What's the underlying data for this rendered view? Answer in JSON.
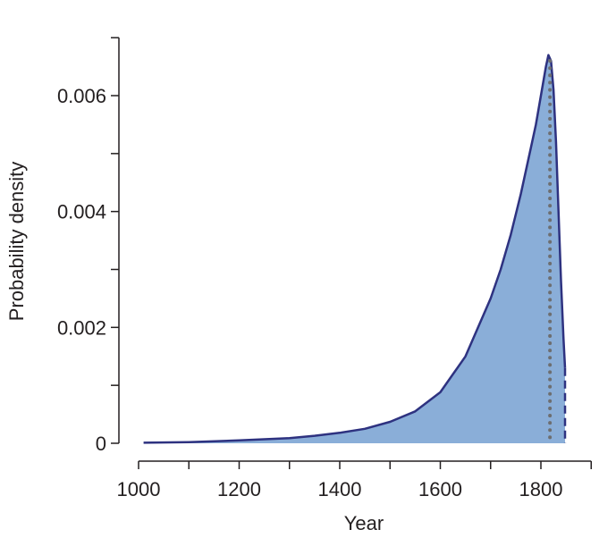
{
  "chart_data": {
    "type": "area",
    "xlabel": "Year",
    "ylabel": "Probability density",
    "xlim": [
      1000,
      1900
    ],
    "ylim": [
      0,
      0.007
    ],
    "x_ticks": [
      1000,
      1200,
      1400,
      1600,
      1800
    ],
    "y_ticks": [
      0,
      0.002,
      0.004,
      0.006
    ],
    "x_tick_labels": [
      "1000",
      "1200",
      "1400",
      "1600",
      "1800"
    ],
    "y_tick_labels": [
      "0",
      "0.002",
      "0.004",
      "0.006"
    ],
    "grid": false,
    "series": [
      {
        "x": [
          1010,
          1100,
          1200,
          1300,
          1350,
          1400,
          1450,
          1500,
          1550,
          1600,
          1650,
          1700,
          1720,
          1740,
          1760,
          1780,
          1790,
          1800,
          1810,
          1815,
          1820,
          1825,
          1830,
          1835,
          1840,
          1845,
          1848
        ],
        "y": [
          1e-05,
          2e-05,
          5e-05,
          9e-05,
          0.00013,
          0.00018,
          0.00025,
          0.00037,
          0.00055,
          0.00088,
          0.0015,
          0.0025,
          0.003,
          0.0036,
          0.0043,
          0.0051,
          0.0055,
          0.006,
          0.0065,
          0.0067,
          0.0066,
          0.0061,
          0.0052,
          0.004,
          0.0028,
          0.0018,
          0.0013
        ],
        "line_color": "#2e3280",
        "fill_color": "#8aaed8"
      }
    ],
    "annotations": [
      {
        "type": "vline",
        "x": 1818,
        "style": "dotted",
        "color": "#6d6e70"
      },
      {
        "type": "vline",
        "x": 1848,
        "style": "dashed",
        "color": "#2e3280"
      }
    ]
  }
}
